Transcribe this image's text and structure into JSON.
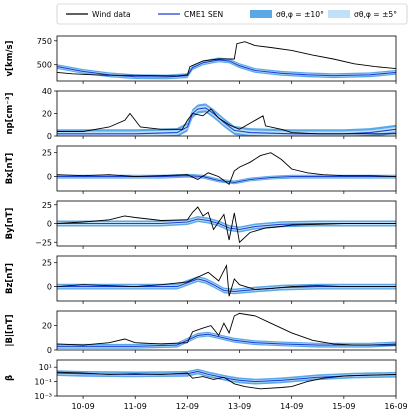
{
  "chart_data": {
    "type": "line",
    "title": "",
    "x_axis": {
      "type": "date",
      "range": [
        "10-09 12:00",
        "16-09 00:00"
      ],
      "tick_labels": [
        "10-09",
        "11-09",
        "12-09",
        "13-09",
        "14-09",
        "15-09",
        "16-09"
      ],
      "tick_days": [
        1,
        2,
        3,
        4,
        5,
        6,
        7
      ]
    },
    "legend": {
      "placement": "top",
      "entries": [
        {
          "label": "Wind data",
          "kind": "line",
          "color": "#000000"
        },
        {
          "label": "CME1 SEN",
          "kind": "line",
          "color": "#1f3fd6"
        },
        {
          "label": "σθ,φ = ±10°",
          "kind": "band",
          "color": "#5aa9e6"
        },
        {
          "label": "σθ,φ = ±5°",
          "kind": "band",
          "color": "#bfe0f7"
        }
      ]
    },
    "colors": {
      "wind": "#000000",
      "model": "#1f3fd6",
      "band10": "#5aa9e6",
      "band5": "#bfe0f7"
    },
    "panels": [
      {
        "id": "v",
        "ylabel": "v[km/s]",
        "ylim": [
          330,
          800
        ],
        "yticks": [
          {
            "v": 500,
            "label": "500"
          },
          {
            "v": 750,
            "label": "750"
          }
        ],
        "wind": [
          [
            0.5,
            420
          ],
          [
            0.8,
            405
          ],
          [
            1.2,
            395
          ],
          [
            1.6,
            390
          ],
          [
            2.0,
            390
          ],
          [
            2.4,
            385
          ],
          [
            2.8,
            382
          ],
          [
            3.0,
            395
          ],
          [
            3.05,
            480
          ],
          [
            3.3,
            540
          ],
          [
            3.6,
            560
          ],
          [
            3.9,
            560
          ],
          [
            3.95,
            720
          ],
          [
            4.1,
            740
          ],
          [
            4.3,
            700
          ],
          [
            4.6,
            680
          ],
          [
            5.0,
            650
          ],
          [
            5.4,
            600
          ],
          [
            5.8,
            560
          ],
          [
            6.2,
            510
          ],
          [
            6.6,
            480
          ],
          [
            7.0,
            460
          ]
        ],
        "model": [
          [
            0.5,
            480
          ],
          [
            1.0,
            430
          ],
          [
            1.5,
            395
          ],
          [
            2.0,
            375
          ],
          [
            2.6,
            372
          ],
          [
            3.0,
            385
          ],
          [
            3.1,
            470
          ],
          [
            3.3,
            520
          ],
          [
            3.6,
            550
          ],
          [
            3.8,
            540
          ],
          [
            4.0,
            490
          ],
          [
            4.3,
            440
          ],
          [
            4.8,
            410
          ],
          [
            5.3,
            395
          ],
          [
            5.8,
            385
          ],
          [
            6.5,
            395
          ],
          [
            7.0,
            420
          ]
        ],
        "band_halfwidth_10": 25,
        "band_halfwidth_5": 12
      },
      {
        "id": "np",
        "ylabel": "np[cm⁻³]",
        "ylim": [
          0,
          40
        ],
        "yticks": [
          {
            "v": 0,
            "label": "0"
          },
          {
            "v": 20,
            "label": "20"
          },
          {
            "v": 40,
            "label": "40"
          }
        ],
        "wind": [
          [
            0.5,
            4
          ],
          [
            1.0,
            4
          ],
          [
            1.5,
            8
          ],
          [
            1.8,
            14
          ],
          [
            1.9,
            20
          ],
          [
            2.1,
            8
          ],
          [
            2.5,
            6
          ],
          [
            2.9,
            6
          ],
          [
            3.0,
            14
          ],
          [
            3.1,
            20
          ],
          [
            3.3,
            18
          ],
          [
            3.45,
            24
          ],
          [
            3.6,
            16
          ],
          [
            3.8,
            10
          ],
          [
            4.0,
            6
          ],
          [
            4.3,
            14
          ],
          [
            4.45,
            18
          ],
          [
            4.5,
            9
          ],
          [
            4.8,
            6
          ],
          [
            5.0,
            3
          ],
          [
            5.5,
            2
          ],
          [
            6.0,
            2
          ],
          [
            6.5,
            2
          ],
          [
            7.0,
            2
          ]
        ],
        "model": [
          [
            0.5,
            2
          ],
          [
            1.0,
            2
          ],
          [
            2.0,
            2
          ],
          [
            2.8,
            3
          ],
          [
            3.0,
            8
          ],
          [
            3.1,
            20
          ],
          [
            3.2,
            24
          ],
          [
            3.35,
            25
          ],
          [
            3.5,
            20
          ],
          [
            3.7,
            12
          ],
          [
            3.9,
            5
          ],
          [
            4.2,
            3
          ],
          [
            5.0,
            2
          ],
          [
            6.0,
            2
          ],
          [
            6.5,
            3
          ],
          [
            7.0,
            6
          ]
        ],
        "band_halfwidth_10": 4,
        "band_halfwidth_5": 2
      },
      {
        "id": "bx",
        "ylabel": "Bx[nT]",
        "ylim": [
          -15,
          32
        ],
        "yticks": [
          {
            "v": 0,
            "label": "0"
          },
          {
            "v": 25,
            "label": "25"
          }
        ],
        "wind": [
          [
            0.5,
            2
          ],
          [
            1.0,
            1
          ],
          [
            1.5,
            2
          ],
          [
            2.0,
            0
          ],
          [
            2.5,
            1
          ],
          [
            3.0,
            2
          ],
          [
            3.2,
            -3
          ],
          [
            3.4,
            4
          ],
          [
            3.6,
            0
          ],
          [
            3.8,
            -8
          ],
          [
            3.9,
            6
          ],
          [
            4.0,
            10
          ],
          [
            4.2,
            15
          ],
          [
            4.4,
            22
          ],
          [
            4.6,
            25
          ],
          [
            4.8,
            18
          ],
          [
            5.0,
            8
          ],
          [
            5.3,
            4
          ],
          [
            5.6,
            2
          ],
          [
            6.0,
            1
          ],
          [
            6.5,
            1
          ],
          [
            7.0,
            0
          ]
        ],
        "model": [
          [
            0.5,
            0
          ],
          [
            2.5,
            0
          ],
          [
            3.0,
            1
          ],
          [
            3.3,
            0
          ],
          [
            3.6,
            -4
          ],
          [
            3.9,
            -6
          ],
          [
            4.2,
            -3
          ],
          [
            4.6,
            -1
          ],
          [
            5.0,
            0
          ],
          [
            7.0,
            0
          ]
        ],
        "band_halfwidth_10": 2,
        "band_halfwidth_5": 1
      },
      {
        "id": "by",
        "ylabel": "By[nT]",
        "ylim": [
          -30,
          30
        ],
        "yticks": [
          {
            "v": -25,
            "label": "−25"
          },
          {
            "v": 0,
            "label": "0"
          },
          {
            "v": 25,
            "label": "25"
          }
        ],
        "wind": [
          [
            0.5,
            0
          ],
          [
            1.0,
            2
          ],
          [
            1.5,
            5
          ],
          [
            1.8,
            10
          ],
          [
            2.0,
            8
          ],
          [
            2.5,
            4
          ],
          [
            3.0,
            5
          ],
          [
            3.1,
            15
          ],
          [
            3.2,
            22
          ],
          [
            3.3,
            10
          ],
          [
            3.4,
            15
          ],
          [
            3.5,
            -8
          ],
          [
            3.7,
            12
          ],
          [
            3.8,
            -22
          ],
          [
            3.9,
            14
          ],
          [
            4.0,
            -25
          ],
          [
            4.2,
            -12
          ],
          [
            4.5,
            -6
          ],
          [
            4.8,
            -4
          ],
          [
            5.0,
            -2
          ],
          [
            5.5,
            -1
          ],
          [
            6.0,
            0
          ],
          [
            7.0,
            0
          ]
        ],
        "model": [
          [
            0.5,
            0
          ],
          [
            2.5,
            0
          ],
          [
            3.0,
            2
          ],
          [
            3.2,
            6
          ],
          [
            3.4,
            4
          ],
          [
            3.6,
            0
          ],
          [
            3.8,
            -6
          ],
          [
            4.0,
            -8
          ],
          [
            4.3,
            -4
          ],
          [
            4.8,
            -1
          ],
          [
            5.5,
            0
          ],
          [
            7.0,
            0
          ]
        ],
        "band_halfwidth_10": 4,
        "band_halfwidth_5": 2
      },
      {
        "id": "bz",
        "ylabel": "Bz[nT]",
        "ylim": [
          -15,
          32
        ],
        "yticks": [
          {
            "v": 0,
            "label": "0"
          },
          {
            "v": 25,
            "label": "25"
          }
        ],
        "wind": [
          [
            0.5,
            0
          ],
          [
            1.0,
            2
          ],
          [
            1.5,
            1
          ],
          [
            2.0,
            0
          ],
          [
            2.5,
            2
          ],
          [
            3.0,
            5
          ],
          [
            3.2,
            10
          ],
          [
            3.4,
            15
          ],
          [
            3.6,
            6
          ],
          [
            3.75,
            22
          ],
          [
            3.8,
            -10
          ],
          [
            3.9,
            8
          ],
          [
            4.0,
            2
          ],
          [
            4.3,
            -3
          ],
          [
            4.6,
            -2
          ],
          [
            5.0,
            0
          ],
          [
            5.5,
            1
          ],
          [
            6.0,
            0
          ],
          [
            7.0,
            0
          ]
        ],
        "model": [
          [
            0.5,
            0
          ],
          [
            2.8,
            0
          ],
          [
            3.0,
            4
          ],
          [
            3.2,
            8
          ],
          [
            3.35,
            6
          ],
          [
            3.5,
            2
          ],
          [
            3.7,
            -4
          ],
          [
            3.9,
            -5
          ],
          [
            4.3,
            -3
          ],
          [
            4.8,
            -1
          ],
          [
            5.5,
            0
          ],
          [
            7.0,
            0
          ]
        ],
        "band_halfwidth_10": 3,
        "band_halfwidth_5": 1.5
      },
      {
        "id": "b",
        "ylabel": "|B|[nT]",
        "ylim": [
          0,
          32
        ],
        "yticks": [
          {
            "v": 0,
            "label": "0"
          },
          {
            "v": 20,
            "label": "20"
          }
        ],
        "wind": [
          [
            0.5,
            5
          ],
          [
            1.0,
            4
          ],
          [
            1.5,
            6
          ],
          [
            1.8,
            9
          ],
          [
            2.0,
            6
          ],
          [
            2.5,
            5
          ],
          [
            3.0,
            6
          ],
          [
            3.1,
            15
          ],
          [
            3.3,
            18
          ],
          [
            3.45,
            20
          ],
          [
            3.6,
            12
          ],
          [
            3.7,
            22
          ],
          [
            3.8,
            14
          ],
          [
            3.9,
            28
          ],
          [
            4.0,
            30
          ],
          [
            4.3,
            28
          ],
          [
            4.6,
            22
          ],
          [
            5.0,
            14
          ],
          [
            5.4,
            8
          ],
          [
            5.8,
            5
          ],
          [
            6.2,
            4
          ],
          [
            7.0,
            4
          ]
        ],
        "model": [
          [
            0.5,
            3
          ],
          [
            1.0,
            3
          ],
          [
            2.0,
            3
          ],
          [
            2.8,
            4
          ],
          [
            3.0,
            8
          ],
          [
            3.2,
            12
          ],
          [
            3.4,
            13
          ],
          [
            3.6,
            11
          ],
          [
            3.9,
            8
          ],
          [
            4.3,
            6
          ],
          [
            4.8,
            5
          ],
          [
            5.5,
            4
          ],
          [
            6.5,
            4
          ],
          [
            7.0,
            5
          ]
        ],
        "band_halfwidth_10": 2,
        "band_halfwidth_5": 1
      },
      {
        "id": "beta",
        "ylabel": "β",
        "yscale": "log",
        "ylim": [
          0.001,
          100
        ],
        "yticks": [
          {
            "v": 0.001,
            "label": "10⁻³"
          },
          {
            "v": 0.1,
            "label": "10⁻¹"
          },
          {
            "v": 10,
            "label": "10¹"
          }
        ],
        "wind": [
          [
            0.5,
            2
          ],
          [
            1.0,
            1.5
          ],
          [
            1.5,
            1
          ],
          [
            2.0,
            1.2
          ],
          [
            2.5,
            1
          ],
          [
            3.0,
            1.5
          ],
          [
            3.1,
            0.3
          ],
          [
            3.3,
            0.5
          ],
          [
            3.5,
            0.2
          ],
          [
            3.7,
            0.4
          ],
          [
            3.9,
            0.05
          ],
          [
            4.1,
            0.02
          ],
          [
            4.4,
            0.01
          ],
          [
            4.8,
            0.015
          ],
          [
            5.0,
            0.02
          ],
          [
            5.3,
            0.1
          ],
          [
            5.6,
            0.3
          ],
          [
            6.0,
            0.6
          ],
          [
            6.5,
            0.8
          ],
          [
            7.0,
            1
          ]
        ],
        "model": [
          [
            0.5,
            1.5
          ],
          [
            1.0,
            1.2
          ],
          [
            2.0,
            1.0
          ],
          [
            3.0,
            1.2
          ],
          [
            3.2,
            2.5
          ],
          [
            3.4,
            1.0
          ],
          [
            3.6,
            0.5
          ],
          [
            3.8,
            0.25
          ],
          [
            4.0,
            0.15
          ],
          [
            4.3,
            0.1
          ],
          [
            4.8,
            0.15
          ],
          [
            5.5,
            0.4
          ],
          [
            6.2,
            0.7
          ],
          [
            7.0,
            0.9
          ]
        ],
        "band_factor_10": 2.5,
        "band_factor_5": 1.5
      }
    ]
  }
}
